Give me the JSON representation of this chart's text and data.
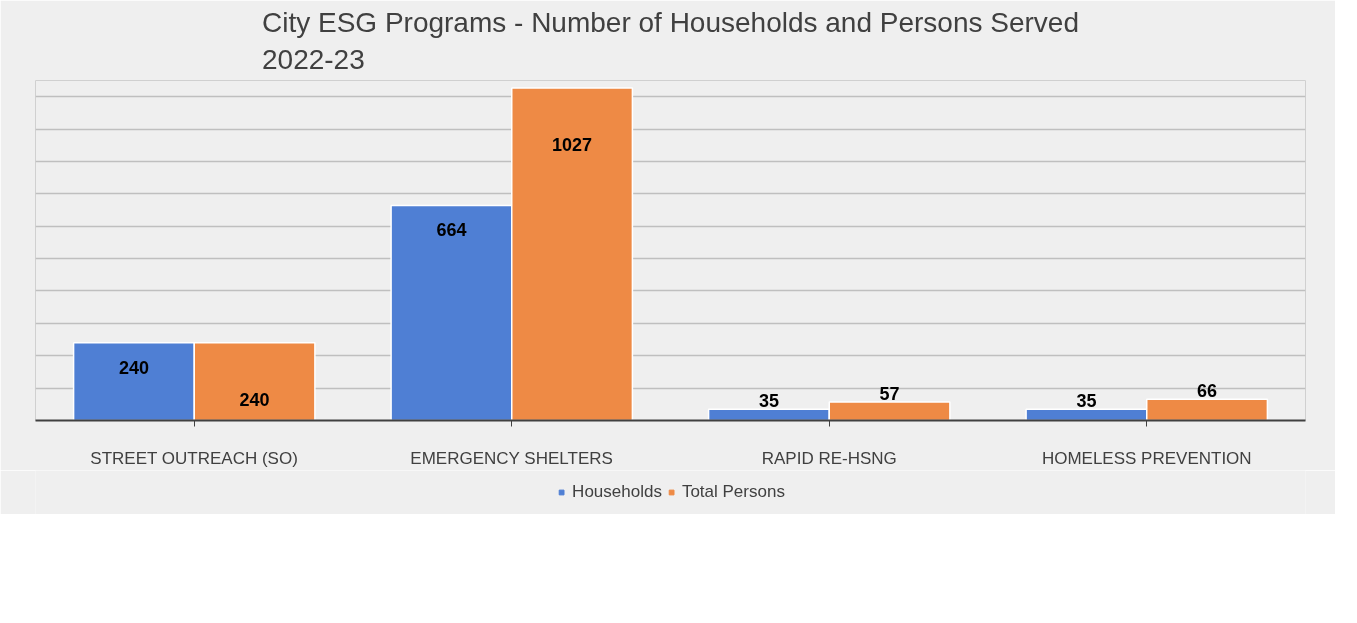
{
  "chart_data": {
    "type": "bar",
    "title": "City ESG Programs - Number of Households and Persons Served 2022-23",
    "categories": [
      "STREET OUTREACH (SO)",
      "EMERGENCY SHELTERS",
      "RAPID RE-HSNG",
      "HOMELESS PREVENTION"
    ],
    "series": [
      {
        "name": "Households",
        "color": "#4f7fd4",
        "values": [
          240,
          664,
          35,
          35
        ]
      },
      {
        "name": "Total Persons",
        "color": "#ee8a45",
        "values": [
          240,
          1027,
          57,
          66
        ]
      }
    ],
    "ylim": [
      0,
      1050
    ],
    "yticks": [
      {
        "value": 100,
        "label": null
      },
      {
        "value": 200,
        "label": null
      },
      {
        "value": 300,
        "label": null
      },
      {
        "value": 400,
        "label": null
      },
      {
        "value": 500,
        "label": null
      },
      {
        "value": 600,
        "label": null
      },
      {
        "value": 700,
        "label": null
      },
      {
        "value": 800,
        "label": null
      },
      {
        "value": 900,
        "label": null
      },
      {
        "value": 1000,
        "label": null
      }
    ],
    "tick_labels": "x",
    "grid": "y",
    "legend": "bottom",
    "data_labels": true
  }
}
